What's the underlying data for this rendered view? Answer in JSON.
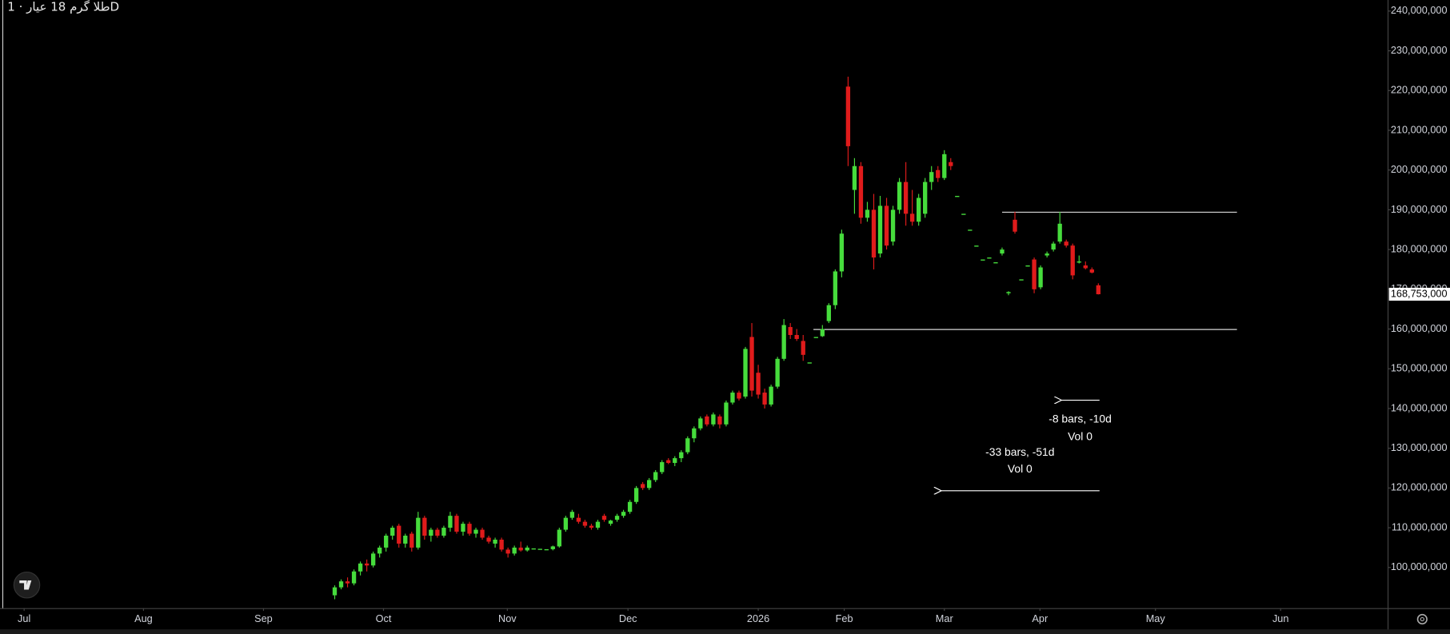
{
  "chart_data": {
    "type": "candlestick",
    "title": "طلا گرم 18 عیار · 1D",
    "up_color": "#46dc3c",
    "down_color": "#e01b1b",
    "open": [
      93000000,
      95000000,
      96500000,
      96000000,
      99000000,
      101000000,
      100500000,
      103500000,
      105000000,
      108000000,
      110500000,
      106000000,
      108500000,
      105000000,
      112500000,
      108000000,
      109500000,
      108000000,
      110000000,
      113000000,
      109000000,
      111000000,
      108500000,
      109500000,
      107500000,
      106000000,
      107000000,
      104500000,
      103500000,
      105000000,
      104300000,
      104800000,
      104700000,
      104600000,
      104600000,
      105300000,
      109500000,
      112500000,
      112500000,
      111500000,
      110500000,
      110000000,
      113000000,
      111000000,
      112000000,
      113000000,
      114000000,
      116500000,
      121000000,
      120000000,
      122000000,
      124000000,
      127000000,
      126300000,
      127500000,
      129000000,
      132500000,
      135000000,
      138000000,
      136000000,
      138000000,
      136000000,
      141500000,
      144000000,
      143000000,
      158000000,
      149000000,
      144000000,
      141000000,
      145500000,
      152500000,
      160500000,
      158500000,
      157000000,
      151600000,
      158000000,
      158200000,
      162000000,
      166000000,
      174500000,
      221000000,
      195000000,
      201000000,
      188000000,
      190000000,
      179000000,
      191000000,
      182000000,
      190000000,
      197000000,
      189000000,
      187000000,
      189000000,
      197000000,
      200000000,
      198000000,
      202000000,
      193500000,
      189000000,
      185000000,
      181000000,
      177500000,
      178000000,
      176800000,
      179000000,
      169000000,
      187500000,
      172500000,
      176000000,
      177500000,
      170500000,
      178500000,
      180000000,
      182000000,
      182000000,
      181000000,
      177000000,
      176000000,
      175000000,
      171000000
    ],
    "high": [
      95500000,
      97000000,
      97500000,
      99500000,
      101500000,
      102000000,
      104000000,
      105500000,
      108500000,
      110500000,
      111000000,
      108500000,
      109000000,
      114000000,
      113000000,
      110000000,
      110000000,
      110500000,
      114000000,
      113500000,
      111500000,
      111500000,
      110000000,
      110000000,
      108000000,
      107500000,
      107500000,
      105000000,
      105500000,
      106500000,
      105500000,
      104800000,
      104700000,
      104600000,
      105500000,
      110000000,
      113000000,
      114500000,
      113500000,
      112000000,
      111000000,
      112000000,
      113500000,
      112000000,
      113500000,
      114500000,
      117000000,
      120500000,
      121500000,
      122500000,
      124500000,
      127000000,
      127500000,
      128000000,
      129500000,
      133000000,
      135500000,
      138000000,
      138500000,
      139000000,
      138500000,
      142000000,
      144500000,
      144500000,
      155500000,
      161500000,
      151000000,
      145000000,
      146000000,
      153000000,
      162500000,
      161500000,
      160000000,
      158500000,
      151600000,
      158000000,
      161000000,
      166500000,
      175000000,
      185000000,
      223500000,
      203000000,
      202000000,
      192000000,
      194000000,
      193500000,
      193000000,
      191000000,
      198000000,
      202000000,
      195000000,
      194000000,
      198000000,
      201000000,
      201000000,
      205000000,
      203000000,
      193500000,
      189000000,
      185000000,
      181000000,
      177500000,
      178000000,
      176800000,
      180500000,
      169500000,
      189500000,
      172500000,
      176000000,
      178000000,
      176000000,
      179500000,
      182000000,
      189500000,
      182500000,
      181500000,
      178500000,
      177000000,
      175500000,
      171500000
    ],
    "low": [
      92000000,
      94500000,
      95000000,
      95500000,
      98000000,
      99000000,
      100000000,
      102500000,
      104000000,
      107000000,
      105000000,
      105000000,
      104000000,
      104500000,
      107000000,
      106500000,
      107500000,
      107500000,
      109000000,
      108500000,
      108000000,
      108000000,
      107500000,
      107000000,
      106000000,
      105000000,
      104000000,
      102500000,
      103000000,
      104000000,
      104000000,
      104800000,
      104700000,
      104600000,
      104300000,
      105000000,
      109000000,
      112000000,
      111000000,
      110000000,
      109500000,
      109500000,
      111500000,
      110500000,
      111500000,
      112500000,
      113500000,
      116000000,
      119500000,
      119500000,
      121500000,
      123500000,
      126000000,
      125500000,
      126500000,
      128500000,
      131500000,
      134500000,
      135500000,
      135500000,
      135000000,
      135500000,
      141000000,
      142000000,
      142500000,
      143000000,
      142500000,
      140000000,
      140500000,
      145000000,
      152000000,
      157500000,
      157000000,
      152000000,
      151600000,
      158000000,
      158000000,
      161500000,
      165000000,
      173000000,
      201000000,
      189000000,
      186500000,
      187000000,
      175000000,
      178000000,
      180000000,
      181000000,
      189000000,
      186000000,
      186000000,
      186000000,
      188000000,
      195000000,
      197000000,
      197500000,
      200000000,
      193500000,
      189000000,
      185000000,
      181000000,
      177500000,
      178000000,
      176800000,
      178500000,
      168500000,
      184000000,
      172500000,
      176000000,
      169000000,
      170000000,
      178000000,
      179500000,
      181500000,
      180500000,
      172500000,
      176500000,
      175000000,
      174000000,
      168700000
    ],
    "close": [
      95000000,
      96500000,
      96000000,
      99000000,
      101000000,
      100500000,
      103500000,
      105000000,
      108000000,
      110000000,
      106000000,
      108000000,
      105000000,
      112500000,
      108000000,
      109500000,
      108000000,
      110000000,
      113000000,
      109000000,
      111000000,
      108500000,
      109500000,
      107500000,
      106500000,
      107000000,
      104500000,
      103500000,
      105000000,
      104300000,
      105000000,
      104800000,
      104700000,
      104600000,
      105300000,
      109500000,
      112500000,
      114000000,
      111500000,
      110500000,
      110000000,
      111500000,
      112000000,
      111800000,
      113000000,
      114000000,
      116500000,
      120000000,
      120000000,
      122000000,
      124000000,
      126500000,
      126300000,
      127500000,
      129000000,
      132500000,
      135000000,
      137500000,
      136000000,
      138500000,
      136000000,
      141500000,
      144000000,
      142500000,
      155000000,
      144500000,
      143500000,
      141000000,
      145500000,
      152500000,
      161000000,
      158500000,
      157500000,
      153500000,
      151600000,
      158000000,
      160000000,
      166000000,
      174500000,
      184000000,
      206000000,
      201000000,
      188000000,
      190000000,
      178000000,
      191000000,
      181000000,
      190000000,
      197000000,
      189000000,
      187000000,
      193000000,
      197000000,
      199500000,
      198000000,
      204000000,
      201000000,
      193500000,
      189000000,
      185000000,
      181000000,
      177500000,
      178000000,
      176800000,
      180000000,
      169300000,
      184500000,
      172500000,
      176000000,
      170000000,
      175500000,
      179000000,
      181500000,
      186500000,
      181000000,
      173500000,
      177000000,
      175300000,
      174200000,
      168753000
    ],
    "last_price": {
      "value": 168753000,
      "label": "168,753,000"
    },
    "hlines": [
      {
        "value": 189500000,
        "x": [
          104.0,
          140.6
        ]
      },
      {
        "value": 160000000,
        "x": [
          74.6,
          140.6
        ]
      }
    ],
    "annotations": [
      "-8 bars, -10d",
      "Vol 0",
      "-33 bars, -51d",
      "Vol 0"
    ],
    "xlim": [
      -52.16,
      164.0
    ],
    "xticks": [
      {
        "value": -48.4,
        "label": "Jul"
      },
      {
        "value": -29.8,
        "label": "Aug"
      },
      {
        "value": -11.1,
        "label": "Sep"
      },
      {
        "value": 7.6,
        "label": "Oct"
      },
      {
        "value": 26.9,
        "label": "Nov"
      },
      {
        "value": 45.7,
        "label": "Dec"
      },
      {
        "value": 66.0,
        "label": "2026"
      },
      {
        "value": 79.4,
        "label": "Feb"
      },
      {
        "value": 95.0,
        "label": "Mar"
      },
      {
        "value": 109.9,
        "label": "Apr"
      },
      {
        "value": 127.9,
        "label": "May"
      },
      {
        "value": 147.4,
        "label": "Jun"
      }
    ],
    "ylim": [
      89770000,
      242790000
    ],
    "yticks": [
      {
        "value": 100000000,
        "label": "100,000,000"
      },
      {
        "value": 110000000,
        "label": "110,000,000"
      },
      {
        "value": 120000000,
        "label": "120,000,000"
      },
      {
        "value": 130000000,
        "label": "130,000,000"
      },
      {
        "value": 140000000,
        "label": "140,000,000"
      },
      {
        "value": 150000000,
        "label": "150,000,000"
      },
      {
        "value": 160000000,
        "label": "160,000,000"
      },
      {
        "value": 170000000,
        "label": "170,000,000"
      },
      {
        "value": 180000000,
        "label": "180,000,000"
      },
      {
        "value": 190000000,
        "label": "190,000,000"
      },
      {
        "value": 200000000,
        "label": "200,000,000"
      },
      {
        "value": 210000000,
        "label": "210,000,000"
      },
      {
        "value": 220000000,
        "label": "220,000,000"
      },
      {
        "value": 230000000,
        "label": "230,000,000"
      },
      {
        "value": 240000000,
        "label": "240,000,000"
      }
    ]
  }
}
